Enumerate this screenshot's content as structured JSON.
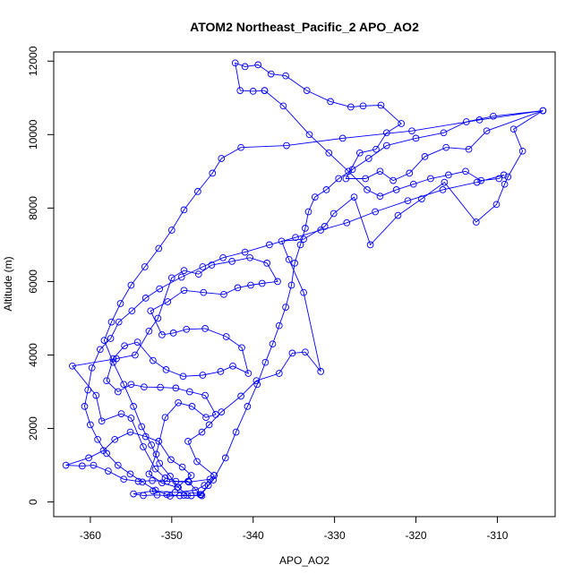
{
  "chart_data": {
    "type": "line",
    "title": "ATOM2 Northeast_Pacific_2 APO_AO2",
    "xlabel": "APO_AO2",
    "ylabel": "Altitude (m)",
    "xlim": [
      -364.5,
      -302.9
    ],
    "ylim": [
      -400,
      12250
    ],
    "xticks": [
      -360,
      -350,
      -340,
      -330,
      -320,
      -310
    ],
    "yticks": [
      0,
      2000,
      4000,
      6000,
      8000,
      10000,
      12000
    ],
    "grid": false,
    "legend": "none",
    "series_color": "#0000ff",
    "marker": "open-circle",
    "series": [
      {
        "points": [
          [
            -346.3,
            170
          ],
          [
            -348.5,
            180
          ],
          [
            -350.2,
            160
          ],
          [
            -351.8,
            190
          ],
          [
            -353.5,
            175
          ],
          [
            -354.7,
            220
          ],
          [
            -352.3,
            300
          ],
          [
            -349.6,
            260
          ],
          [
            -347.1,
            320
          ],
          [
            -346.0,
            450
          ],
          [
            -345.3,
            620
          ],
          [
            -347.9,
            540
          ],
          [
            -350.6,
            560
          ],
          [
            -352.4,
            580
          ],
          [
            -354.1,
            560
          ],
          [
            -355.9,
            620
          ],
          [
            -357.8,
            840
          ],
          [
            -359.6,
            1000
          ],
          [
            -361.0,
            980
          ],
          [
            -363.0,
            1000
          ],
          [
            -360.2,
            1200
          ],
          [
            -358.4,
            1400
          ],
          [
            -357.0,
            1700
          ],
          [
            -355.1,
            1900
          ],
          [
            -353.2,
            1780
          ],
          [
            -351.6,
            1650
          ],
          [
            -350.1,
            1150
          ],
          [
            -348.7,
            950
          ],
          [
            -347.6,
            720
          ],
          [
            -349.3,
            400
          ],
          [
            -351.2,
            520
          ],
          [
            -352.8,
            760
          ],
          [
            -351.9,
            1300
          ],
          [
            -350.8,
            2300
          ],
          [
            -349.2,
            2700
          ],
          [
            -347.5,
            2600
          ],
          [
            -345.8,
            2300
          ],
          [
            -344.6,
            2380
          ],
          [
            -345.9,
            2900
          ],
          [
            -347.8,
            3000
          ],
          [
            -349.5,
            3100
          ],
          [
            -351.4,
            3120
          ],
          [
            -353.4,
            3130
          ],
          [
            -355.0,
            3200
          ],
          [
            -356.6,
            3000
          ],
          [
            -358.0,
            3300
          ],
          [
            -357.2,
            3900
          ],
          [
            -355.8,
            4250
          ],
          [
            -354.2,
            4350
          ],
          [
            -352.3,
            3850
          ],
          [
            -350.7,
            3600
          ],
          [
            -348.6,
            3420
          ],
          [
            -346.2,
            3450
          ],
          [
            -344.0,
            3550
          ],
          [
            -342.5,
            3700
          ],
          [
            -340.6,
            3500
          ],
          [
            -341.4,
            4200
          ],
          [
            -343.3,
            4500
          ],
          [
            -345.9,
            4720
          ],
          [
            -348.2,
            4700
          ],
          [
            -349.8,
            4600
          ],
          [
            -351.2,
            4550
          ],
          [
            -352.6,
            5200
          ],
          [
            -350.5,
            5450
          ],
          [
            -348.5,
            5760
          ],
          [
            -346.1,
            5700
          ],
          [
            -343.6,
            5650
          ],
          [
            -341.9,
            5830
          ],
          [
            -340.3,
            5900
          ],
          [
            -338.9,
            5950
          ],
          [
            -337.0,
            6000
          ],
          [
            -338.3,
            6500
          ],
          [
            -340.4,
            6650
          ],
          [
            -342.6,
            6550
          ],
          [
            -345.1,
            6450
          ],
          [
            -346.7,
            6200
          ],
          [
            -348.5,
            6300
          ],
          [
            -350.0,
            6100
          ],
          [
            -351.7,
            5000
          ],
          [
            -352.8,
            4650
          ],
          [
            -354.5,
            4000
          ],
          [
            -356.8,
            3900
          ],
          [
            -362.2,
            3700
          ],
          [
            -359.3,
            2900
          ],
          [
            -358.6,
            2200
          ],
          [
            -356.2,
            2400
          ],
          [
            -355.0,
            2280
          ],
          [
            -353.5,
            1500
          ],
          [
            -352.0,
            900
          ],
          [
            -350.8,
            650
          ],
          [
            -349.5,
            560
          ],
          [
            -348.0,
            560
          ],
          [
            -346.5,
            200
          ],
          [
            -345.5,
            450
          ],
          [
            -344.8,
            720
          ]
        ]
      },
      {
        "points": [
          [
            -344.8,
            720
          ],
          [
            -346.9,
            1100
          ],
          [
            -348.0,
            1650
          ],
          [
            -346.3,
            1900
          ],
          [
            -345.4,
            2100
          ],
          [
            -343.9,
            2450
          ],
          [
            -341.5,
            2880
          ],
          [
            -339.6,
            3300
          ],
          [
            -336.8,
            3500
          ],
          [
            -335.2,
            4050
          ],
          [
            -333.6,
            4080
          ],
          [
            -331.7,
            3550
          ],
          [
            -333.8,
            5700
          ],
          [
            -335.6,
            6600
          ],
          [
            -336.5,
            7100
          ],
          [
            -333.8,
            7150
          ],
          [
            -331.2,
            7500
          ],
          [
            -330.1,
            7850
          ],
          [
            -327.6,
            8300
          ],
          [
            -325.6,
            7000
          ],
          [
            -322.2,
            7800
          ],
          [
            -319.3,
            8250
          ],
          [
            -316.5,
            8700
          ],
          [
            -312.6,
            7620
          ],
          [
            -310.1,
            8100
          ],
          [
            -309.1,
            8650
          ],
          [
            -308.7,
            8850
          ],
          [
            -306.9,
            9550
          ],
          [
            -308.0,
            10150
          ],
          [
            -304.4,
            10650
          ],
          [
            -311.3,
            10100
          ],
          [
            -313.5,
            9600
          ],
          [
            -316.3,
            9650
          ],
          [
            -318.9,
            9400
          ],
          [
            -320.8,
            8950
          ],
          [
            -322.8,
            8750
          ],
          [
            -324.4,
            9000
          ],
          [
            -326.2,
            8800
          ],
          [
            -328.6,
            8800
          ],
          [
            -326.9,
            9500
          ],
          [
            -324.9,
            9600
          ],
          [
            -323.6,
            10050
          ],
          [
            -321.8,
            10300
          ],
          [
            -324.3,
            10800
          ],
          [
            -326.5,
            10780
          ],
          [
            -328.0,
            10750
          ],
          [
            -330.5,
            10900
          ],
          [
            -333.4,
            11200
          ],
          [
            -336.0,
            11600
          ],
          [
            -337.8,
            11650
          ],
          [
            -339.4,
            11900
          ],
          [
            -341.0,
            11850
          ],
          [
            -342.2,
            11950
          ],
          [
            -341.6,
            11200
          ],
          [
            -340.0,
            11180
          ],
          [
            -338.6,
            11200
          ]
        ]
      },
      {
        "points": [
          [
            -338.6,
            11200
          ],
          [
            -336.3,
            10780
          ],
          [
            -333.1,
            10000
          ],
          [
            -330.7,
            9500
          ],
          [
            -328.3,
            9000
          ],
          [
            -326.0,
            8500
          ],
          [
            -324.4,
            8320
          ],
          [
            -322.4,
            8500
          ],
          [
            -320.3,
            8650
          ],
          [
            -318.2,
            8800
          ],
          [
            -316.0,
            8900
          ],
          [
            -313.9,
            9000
          ],
          [
            -312.0,
            8750
          ],
          [
            -309.8,
            8800
          ],
          [
            -309.2,
            8900
          ],
          [
            -312.5,
            8700
          ],
          [
            -316.7,
            8500
          ],
          [
            -321.0,
            8200
          ],
          [
            -325.0,
            7900
          ],
          [
            -328.5,
            7600
          ],
          [
            -331.7,
            7400
          ],
          [
            -334.8,
            7200
          ],
          [
            -338.0,
            7000
          ],
          [
            -341.0,
            6800
          ],
          [
            -343.7,
            6650
          ],
          [
            -346.2,
            6400
          ],
          [
            -348.8,
            6120
          ],
          [
            -351.5,
            5800
          ],
          [
            -353.2,
            5550
          ],
          [
            -354.9,
            5200
          ],
          [
            -356.5,
            4900
          ],
          [
            -357.5,
            4450
          ],
          [
            -358.8,
            4150
          ],
          [
            -359.8,
            3650
          ],
          [
            -360.3,
            3050
          ],
          [
            -360.7,
            2600
          ],
          [
            -360.0,
            2100
          ],
          [
            -359.1,
            1700
          ],
          [
            -358.0,
            1320
          ],
          [
            -356.6,
            1000
          ],
          [
            -355.1,
            760
          ],
          [
            -353.6,
            540
          ],
          [
            -352.0,
            320
          ],
          [
            -350.6,
            200
          ],
          [
            -349.0,
            170
          ],
          [
            -347.6,
            170
          ],
          [
            -346.4,
            200
          ]
        ]
      },
      {
        "points": [
          [
            -346.4,
            200
          ],
          [
            -344.9,
            600
          ],
          [
            -343.4,
            1200
          ],
          [
            -342.1,
            1900
          ],
          [
            -340.7,
            2600
          ],
          [
            -339.5,
            3200
          ],
          [
            -338.5,
            3800
          ],
          [
            -337.6,
            4300
          ],
          [
            -336.8,
            4800
          ],
          [
            -336.0,
            5300
          ],
          [
            -335.3,
            5900
          ],
          [
            -334.9,
            6500
          ],
          [
            -334.2,
            7000
          ],
          [
            -333.6,
            7450
          ],
          [
            -333.2,
            7900
          ],
          [
            -332.4,
            8300
          ],
          [
            -331.0,
            8500
          ],
          [
            -329.5,
            8800
          ],
          [
            -327.8,
            9050
          ],
          [
            -325.8,
            9350
          ],
          [
            -323.6,
            9700
          ],
          [
            -320.0,
            9900
          ],
          [
            -316.6,
            10050
          ],
          [
            -313.8,
            10350
          ],
          [
            -310.5,
            10500
          ],
          [
            -304.4,
            10650
          ],
          [
            -312.2,
            10400
          ],
          [
            -320.5,
            10100
          ],
          [
            -329.0,
            9900
          ],
          [
            -335.9,
            9700
          ],
          [
            -341.5,
            9650
          ],
          [
            -343.9,
            9350
          ],
          [
            -345.0,
            8950
          ],
          [
            -346.8,
            8450
          ],
          [
            -348.5,
            7950
          ],
          [
            -350.0,
            7400
          ],
          [
            -351.6,
            6900
          ],
          [
            -353.3,
            6400
          ],
          [
            -355.0,
            5900
          ],
          [
            -356.3,
            5400
          ],
          [
            -357.4,
            4900
          ],
          [
            -358.3,
            4400
          ],
          [
            -357.2,
            3800
          ],
          [
            -355.9,
            3200
          ],
          [
            -354.7,
            2600
          ],
          [
            -353.7,
            2050
          ],
          [
            -352.5,
            1550
          ],
          [
            -351.5,
            1050
          ],
          [
            -350.2,
            700
          ],
          [
            -349.2,
            400
          ],
          [
            -348.1,
            180
          ]
        ]
      }
    ]
  }
}
